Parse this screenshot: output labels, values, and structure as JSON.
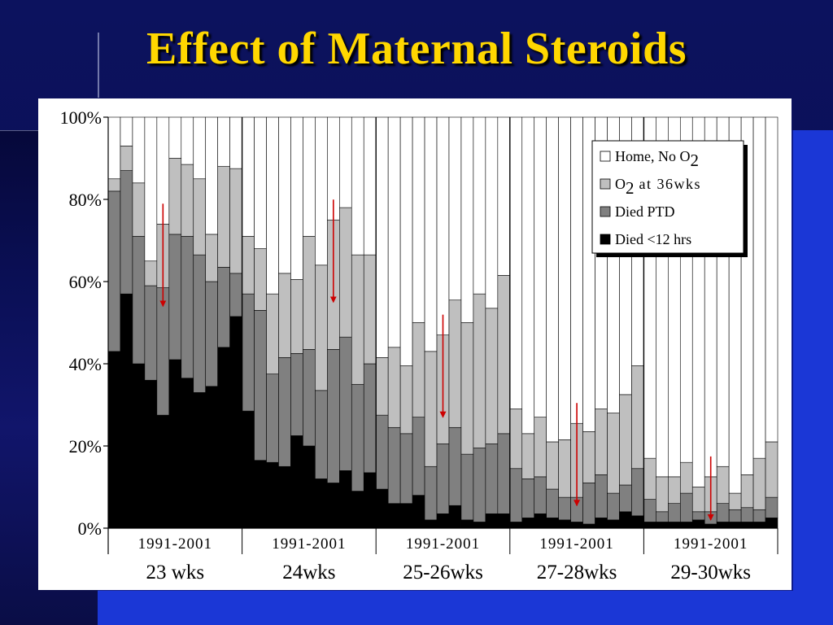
{
  "slide": {
    "title": "Effect of Maternal Steroids"
  },
  "colors": {
    "background": "#0a0f55",
    "accent_panel": "#1b37d6",
    "title": "#ffd700",
    "arrow": "#cc0000"
  },
  "chart_data": {
    "type": "bar",
    "stacked": true,
    "y_tick_labels": [
      "0%",
      "20%",
      "40%",
      "60%",
      "80%",
      "100%"
    ],
    "ylim": [
      0,
      100
    ],
    "y_unit": "%",
    "grid": false,
    "legend_position": "top-right",
    "legend": [
      {
        "label": "Home, No O",
        "subscript": "2",
        "color": "#ffffff"
      },
      {
        "label": "O",
        "subscript": "2",
        "suffix": " at 36wks",
        "color": "#bfbfbf"
      },
      {
        "label": "Died PTD",
        "color": "#808080"
      },
      {
        "label": "Died <12 hrs",
        "color": "#000000"
      }
    ],
    "series_order": [
      "Died <12 hrs",
      "Died PTD",
      "O2 at 36wks",
      "Home, No O2"
    ],
    "groups": [
      {
        "label": "23 wks",
        "years_label": "1991-2001",
        "bars": [
          [
            43,
            39,
            3,
            15
          ],
          [
            57,
            30,
            6,
            7
          ],
          [
            40,
            31,
            13,
            16
          ],
          [
            36,
            23,
            6,
            35
          ],
          [
            27.5,
            31,
            15.5,
            26
          ],
          [
            41,
            30.5,
            18.5,
            10
          ],
          [
            36.5,
            34.5,
            17.5,
            11.5
          ],
          [
            33,
            33.5,
            18.5,
            15
          ],
          [
            34.5,
            25.5,
            11.5,
            28.5
          ],
          [
            44,
            19.5,
            24.5,
            12
          ],
          [
            51.5,
            10.5,
            25.5,
            12.5
          ]
        ],
        "arrow_bar": 4
      },
      {
        "label": "24wks",
        "years_label": "1991-2001",
        "bars": [
          [
            28.5,
            28.5,
            14,
            29
          ],
          [
            16.5,
            36.5,
            15,
            32
          ],
          [
            16,
            21.5,
            19.5,
            43
          ],
          [
            15,
            26.5,
            20.5,
            38
          ],
          [
            22.5,
            20,
            18,
            39.5
          ],
          [
            20,
            23.5,
            27.5,
            29
          ],
          [
            12,
            21.5,
            30.5,
            36
          ],
          [
            11,
            32.5,
            31.5,
            25
          ],
          [
            14,
            32.5,
            31.5,
            22
          ],
          [
            9,
            26,
            31.5,
            33.5
          ],
          [
            13.5,
            26.5,
            26.5,
            33.5
          ]
        ],
        "arrow_bar": 7
      },
      {
        "label": "25-26wks",
        "years_label": "1991-2001",
        "bars": [
          [
            9.5,
            18,
            14,
            58.5
          ],
          [
            6,
            18.5,
            19.5,
            56
          ],
          [
            6,
            17,
            16.5,
            60.5
          ],
          [
            8,
            19,
            23,
            50
          ],
          [
            2,
            13,
            28,
            57
          ],
          [
            3.5,
            17,
            26.5,
            53
          ],
          [
            5.5,
            19,
            31,
            44.5
          ],
          [
            2,
            16,
            32,
            50
          ],
          [
            1.5,
            18,
            37.5,
            43
          ],
          [
            3.5,
            17,
            33,
            46.5
          ],
          [
            3.5,
            19.5,
            38.5,
            38.5
          ]
        ],
        "arrow_bar": 5
      },
      {
        "label": "27-28wks",
        "years_label": "1991-2001",
        "bars": [
          [
            1.5,
            13,
            14.5,
            71
          ],
          [
            2.5,
            9.5,
            11,
            77
          ],
          [
            3.5,
            9,
            14.5,
            73
          ],
          [
            2.5,
            7,
            11.5,
            79
          ],
          [
            2,
            5.5,
            14,
            78.5
          ],
          [
            1.5,
            6,
            18,
            74.5
          ],
          [
            1,
            10,
            12.5,
            76.5
          ],
          [
            2.5,
            10.5,
            16,
            71
          ],
          [
            2,
            6.5,
            19.5,
            72
          ],
          [
            4,
            6.5,
            22,
            67.5
          ],
          [
            3,
            11.5,
            25,
            60.5
          ]
        ],
        "arrow_bar": 5
      },
      {
        "label": "29-30wks",
        "years_label": "1991-2001",
        "bars": [
          [
            1.5,
            5.5,
            10,
            83
          ],
          [
            1.5,
            2.5,
            8.5,
            87.5
          ],
          [
            1.5,
            4.5,
            6.5,
            87.5
          ],
          [
            1.5,
            7,
            7.5,
            84
          ],
          [
            2,
            2,
            6,
            90
          ],
          [
            1,
            3,
            8.5,
            87.5
          ],
          [
            1.5,
            4.5,
            9,
            85
          ],
          [
            1.5,
            3,
            4,
            91.5
          ],
          [
            1.5,
            3.5,
            8,
            87
          ],
          [
            1.5,
            3,
            12.5,
            83
          ],
          [
            2.5,
            5,
            13.5,
            79
          ]
        ],
        "arrow_bar": 5
      }
    ]
  }
}
